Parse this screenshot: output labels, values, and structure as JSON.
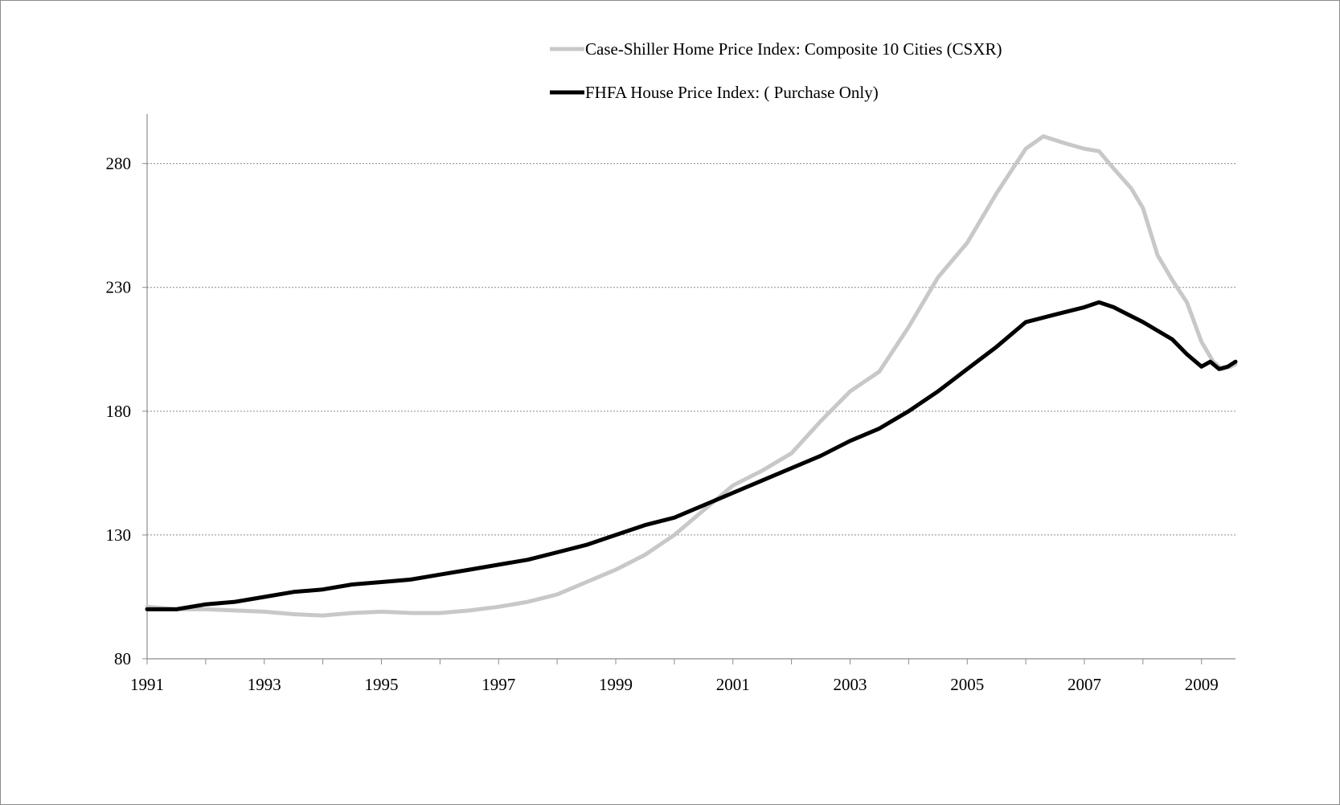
{
  "chart_data": {
    "type": "line",
    "title": "",
    "xlabel": "",
    "ylabel": "",
    "xlim": [
      1991,
      2009.58
    ],
    "ylim": [
      80,
      300
    ],
    "yticks": [
      80,
      130,
      180,
      230,
      280
    ],
    "xticks": [
      1991,
      1993,
      1995,
      1997,
      1999,
      2001,
      2003,
      2005,
      2007,
      2009
    ],
    "grid": "horizontal dotted",
    "legend_position": "top",
    "colors": {
      "case_shiller": "#c8c8c8",
      "fhfa": "#000000",
      "grid": "#8c8c8c",
      "axis": "#8c8c8c"
    },
    "series": [
      {
        "name": "Case-Shiller Home Price Index: Composite 10 Cities (CSXR)",
        "points": [
          [
            1991.0,
            101
          ],
          [
            1991.5,
            100
          ],
          [
            1992.0,
            100
          ],
          [
            1992.5,
            99.5
          ],
          [
            1993.0,
            99
          ],
          [
            1993.5,
            98
          ],
          [
            1994.0,
            97.5
          ],
          [
            1994.5,
            98.5
          ],
          [
            1995.0,
            99
          ],
          [
            1995.5,
            98.5
          ],
          [
            1996.0,
            98.5
          ],
          [
            1996.5,
            99.5
          ],
          [
            1997.0,
            101
          ],
          [
            1997.5,
            103
          ],
          [
            1998.0,
            106
          ],
          [
            1998.5,
            111
          ],
          [
            1999.0,
            116
          ],
          [
            1999.5,
            122
          ],
          [
            2000.0,
            130
          ],
          [
            2000.5,
            140
          ],
          [
            2001.0,
            150
          ],
          [
            2001.5,
            156
          ],
          [
            2002.0,
            163
          ],
          [
            2002.5,
            176
          ],
          [
            2003.0,
            188
          ],
          [
            2003.5,
            196
          ],
          [
            2004.0,
            214
          ],
          [
            2004.5,
            234
          ],
          [
            2005.0,
            248
          ],
          [
            2005.5,
            268
          ],
          [
            2006.0,
            286
          ],
          [
            2006.3,
            291
          ],
          [
            2006.7,
            288
          ],
          [
            2007.0,
            286
          ],
          [
            2007.25,
            285
          ],
          [
            2007.5,
            278
          ],
          [
            2007.8,
            270
          ],
          [
            2008.0,
            262
          ],
          [
            2008.25,
            243
          ],
          [
            2008.5,
            233
          ],
          [
            2008.75,
            224
          ],
          [
            2009.0,
            208
          ],
          [
            2009.2,
            200
          ],
          [
            2009.35,
            197
          ],
          [
            2009.5,
            198
          ],
          [
            2009.58,
            199
          ]
        ]
      },
      {
        "name": "FHFA House Price Index: ( Purchase Only)",
        "points": [
          [
            1991.0,
            100
          ],
          [
            1991.5,
            100
          ],
          [
            1992.0,
            102
          ],
          [
            1992.5,
            103
          ],
          [
            1993.0,
            105
          ],
          [
            1993.5,
            107
          ],
          [
            1994.0,
            108
          ],
          [
            1994.5,
            110
          ],
          [
            1995.0,
            111
          ],
          [
            1995.5,
            112
          ],
          [
            1996.0,
            114
          ],
          [
            1996.5,
            116
          ],
          [
            1997.0,
            118
          ],
          [
            1997.5,
            120
          ],
          [
            1998.0,
            123
          ],
          [
            1998.5,
            126
          ],
          [
            1999.0,
            130
          ],
          [
            1999.5,
            134
          ],
          [
            2000.0,
            137
          ],
          [
            2000.5,
            142
          ],
          [
            2001.0,
            147
          ],
          [
            2001.5,
            152
          ],
          [
            2002.0,
            157
          ],
          [
            2002.5,
            162
          ],
          [
            2003.0,
            168
          ],
          [
            2003.5,
            173
          ],
          [
            2004.0,
            180
          ],
          [
            2004.5,
            188
          ],
          [
            2005.0,
            197
          ],
          [
            2005.5,
            206
          ],
          [
            2006.0,
            216
          ],
          [
            2006.5,
            219
          ],
          [
            2007.0,
            222
          ],
          [
            2007.25,
            224
          ],
          [
            2007.5,
            222
          ],
          [
            2008.0,
            216
          ],
          [
            2008.5,
            209
          ],
          [
            2008.75,
            203
          ],
          [
            2009.0,
            198
          ],
          [
            2009.15,
            200
          ],
          [
            2009.3,
            197
          ],
          [
            2009.45,
            198
          ],
          [
            2009.58,
            200
          ]
        ]
      }
    ]
  }
}
